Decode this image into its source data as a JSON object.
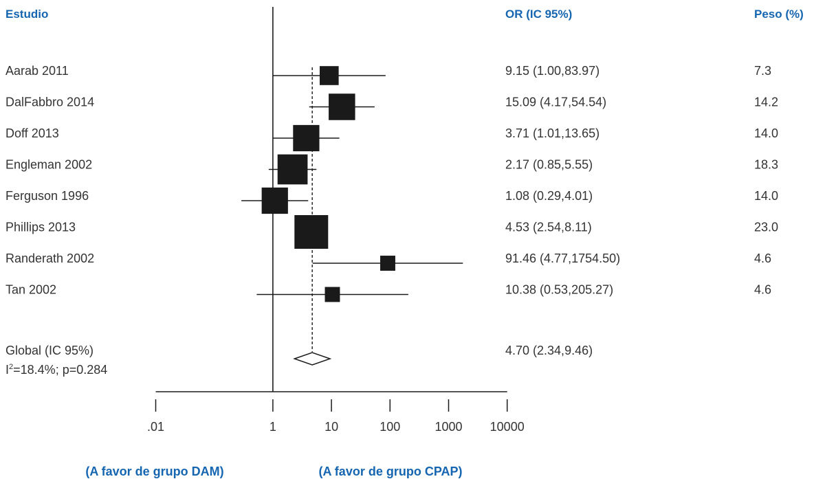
{
  "colors": {
    "header": "#1565b0",
    "text": "#333333",
    "marks": "#1a1a1a",
    "background": "#ffffff"
  },
  "headers": {
    "study": "Estudio",
    "or": "OR (IC 95%)",
    "weight": "Peso (%)"
  },
  "chart_data": {
    "type": "forest",
    "x_scale": "log",
    "xlim": [
      0.01,
      10000
    ],
    "x_ticks": [
      0.01,
      1,
      10,
      100,
      1000,
      10000
    ],
    "x_tick_labels": [
      ".01",
      "1",
      "10",
      "100",
      "1000",
      "10000"
    ],
    "null_value": 1,
    "studies": [
      {
        "name": "Aarab 2011",
        "or": 9.15,
        "lower": 1.0,
        "upper": 83.97,
        "or_text": "9.15 (1.00,83.97)",
        "weight": 7.3,
        "weight_text": "7.3"
      },
      {
        "name": "DalFabbro 2014",
        "or": 15.09,
        "lower": 4.17,
        "upper": 54.54,
        "or_text": "15.09 (4.17,54.54)",
        "weight": 14.2,
        "weight_text": "14.2"
      },
      {
        "name": "Doff 2013",
        "or": 3.71,
        "lower": 1.01,
        "upper": 13.65,
        "or_text": "3.71 (1.01,13.65)",
        "weight": 14.0,
        "weight_text": "14.0"
      },
      {
        "name": "Engleman 2002",
        "or": 2.17,
        "lower": 0.85,
        "upper": 5.55,
        "or_text": "2.17 (0.85,5.55)",
        "weight": 18.3,
        "weight_text": "18.3"
      },
      {
        "name": "Ferguson 1996",
        "or": 1.08,
        "lower": 0.29,
        "upper": 4.01,
        "or_text": "1.08 (0.29,4.01)",
        "weight": 14.0,
        "weight_text": "14.0"
      },
      {
        "name": "Phillips 2013",
        "or": 4.53,
        "lower": 2.54,
        "upper": 8.11,
        "or_text": "4.53 (2.54,8.11)",
        "weight": 23.0,
        "weight_text": "23.0"
      },
      {
        "name": "Randerath 2002",
        "or": 91.46,
        "lower": 4.77,
        "upper": 1754.5,
        "or_text": "91.46 (4.77,1754.50)",
        "weight": 4.6,
        "weight_text": "4.6"
      },
      {
        "name": "Tan 2002",
        "or": 10.38,
        "lower": 0.53,
        "upper": 205.27,
        "or_text": "10.38 (0.53,205.27)",
        "weight": 4.6,
        "weight_text": "4.6"
      }
    ],
    "overall": {
      "name": "Global (IC 95%)",
      "or": 4.7,
      "lower": 2.34,
      "upper": 9.46,
      "or_text": "4.70 (2.34,9.46)",
      "heterogeneity_prefix": "I",
      "heterogeneity_sup": "2",
      "heterogeneity_rest": "=18.4%; p=0.284"
    },
    "favors_left": "(A favor de grupo DAM)",
    "favors_right": "(A favor de grupo CPAP)"
  }
}
